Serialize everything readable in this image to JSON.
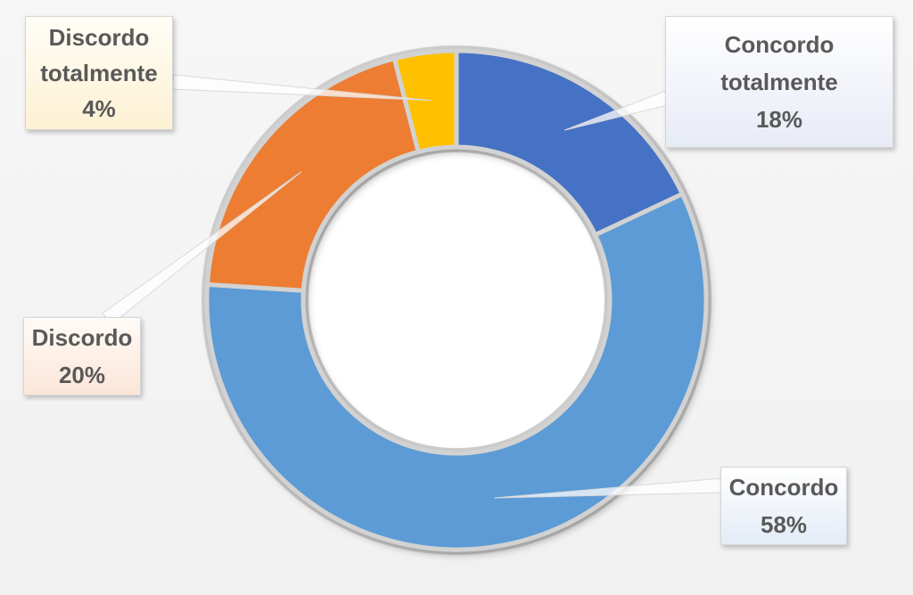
{
  "chart_data": {
    "type": "pie",
    "variant": "donut",
    "title": "",
    "start_angle_deg": 0,
    "direction": "clockwise",
    "slices": [
      {
        "label": "Concordo totalmente",
        "label_lines": [
          "Concordo",
          "totalmente"
        ],
        "value": 18,
        "value_label": "18%",
        "color": "#4472C4"
      },
      {
        "label": "Concordo",
        "label_lines": [
          "Concordo"
        ],
        "value": 58,
        "value_label": "58%",
        "color": "#5B9BD5"
      },
      {
        "label": "Discordo",
        "label_lines": [
          "Discordo"
        ],
        "value": 20,
        "value_label": "20%",
        "color": "#ED7D31"
      },
      {
        "label": "Discordo totalmente",
        "label_lines": [
          "Discordo",
          "totalmente"
        ],
        "value": 4,
        "value_label": "4%",
        "color": "#FFC000"
      }
    ],
    "legend": "none",
    "data_labels": "callouts"
  }
}
